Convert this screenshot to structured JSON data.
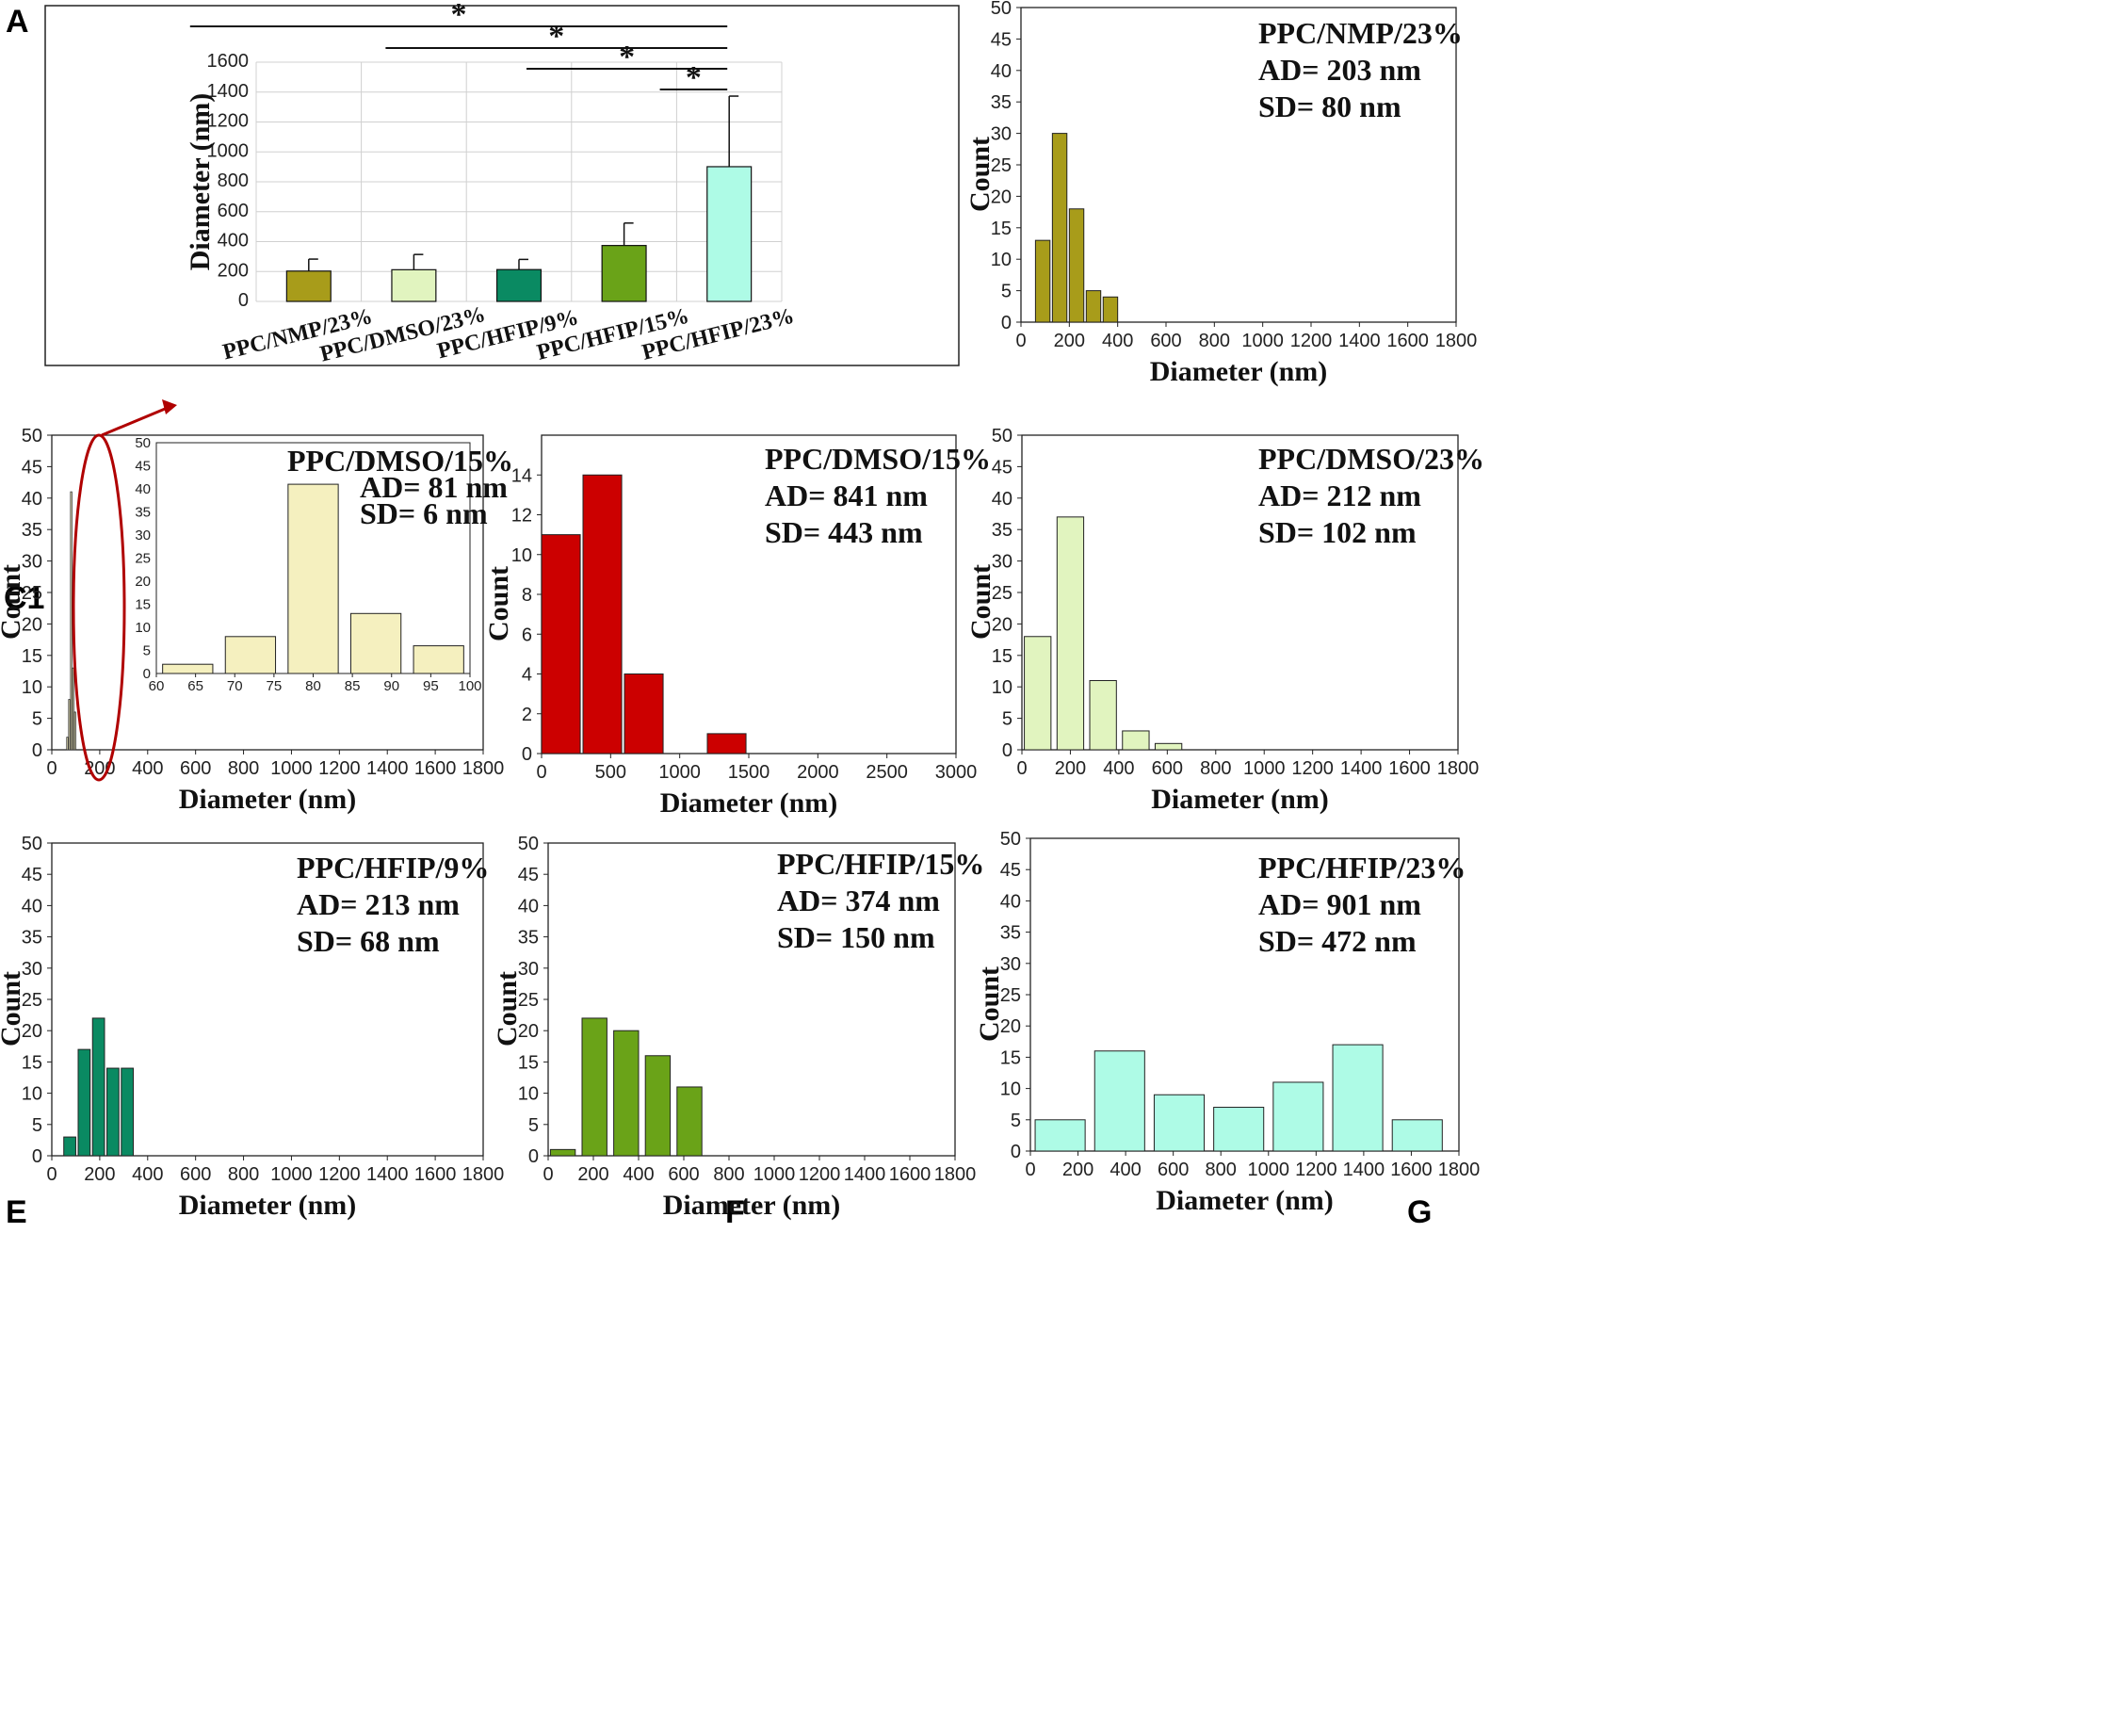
{
  "chart_data": [
    {
      "panel": "A",
      "type": "bar",
      "ylabel": "Diameter (nm)",
      "xlabel": "",
      "ylim": [
        0,
        1600
      ],
      "yticks": [
        0,
        200,
        400,
        600,
        800,
        1000,
        1200,
        1400,
        1600
      ],
      "grid": true,
      "categories": [
        "PPC/NMP/23%",
        "PPC/DMSO/23%",
        "PPC/HFIP/9%",
        "PPC/HFIP/15%",
        "PPC/HFIP/23%"
      ],
      "values": [
        203,
        212,
        213,
        374,
        901
      ],
      "errors": [
        80,
        102,
        68,
        150,
        472
      ],
      "colors": [
        "#a89c1a",
        "#e1f4bf",
        "#0a8a62",
        "#6aa318",
        "#aefbe6"
      ],
      "significance": [
        {
          "from": 0,
          "to": 4,
          "label": "*"
        },
        {
          "from": 1,
          "to": 4,
          "label": "*"
        },
        {
          "from": 2,
          "to": 4,
          "label": "*"
        },
        {
          "from": 3,
          "to": 4,
          "label": "*"
        }
      ]
    },
    {
      "panel": "B",
      "type": "bar",
      "xlabel": "Diameter (nm)",
      "ylabel": "Count",
      "xlim": [
        0,
        1800
      ],
      "ylim": [
        0,
        50
      ],
      "xticks": [
        0,
        200,
        400,
        600,
        800,
        1000,
        1200,
        1400,
        1600,
        1800
      ],
      "yticks": [
        0,
        5,
        10,
        15,
        20,
        25,
        30,
        35,
        40,
        45,
        50
      ],
      "bins": [
        [
          60,
          120,
          13
        ],
        [
          130,
          190,
          30
        ],
        [
          200,
          260,
          18
        ],
        [
          270,
          330,
          5
        ],
        [
          340,
          400,
          4
        ]
      ],
      "color": "#a89c1a",
      "annotation": [
        "PPC/NMP/23%",
        "AD= 203 nm",
        "SD= 80 nm"
      ]
    },
    {
      "panel": "C1",
      "type": "bar",
      "xlabel": "Diameter (nm)",
      "ylabel": "Count",
      "xlim": [
        0,
        1800
      ],
      "ylim": [
        0,
        50
      ],
      "xticks": [
        0,
        200,
        400,
        600,
        800,
        1000,
        1200,
        1400,
        1600,
        1800
      ],
      "yticks": [
        0,
        5,
        10,
        15,
        20,
        25,
        30,
        35,
        40,
        45,
        50
      ],
      "bins": [
        [
          62,
          66,
          2
        ],
        [
          70,
          74,
          8
        ],
        [
          78,
          82,
          41
        ],
        [
          86,
          90,
          13
        ],
        [
          94,
          98,
          6
        ]
      ],
      "color": "#f5f0bf",
      "annotation": [
        "PPC/DMSO/15%",
        "AD= 81 nm",
        "SD= 6 nm"
      ],
      "inset": {
        "xlim": [
          60,
          100
        ],
        "ylim": [
          0,
          50
        ],
        "xticks": [
          60,
          65,
          70,
          75,
          80,
          85,
          90,
          95,
          100
        ],
        "yticks": [
          0,
          5,
          10,
          15,
          20,
          25,
          30,
          35,
          40,
          45,
          50
        ],
        "bins": [
          [
            61,
            69,
            2
          ],
          [
            71,
            79,
            8
          ],
          [
            81,
            89,
            41
          ],
          [
            91,
            99,
            13
          ],
          [
            101,
            109,
            6
          ]
        ]
      }
    },
    {
      "panel": "C2",
      "type": "bar",
      "xlabel": "Diameter (nm)",
      "ylabel": "Count",
      "xlim": [
        0,
        3000
      ],
      "ylim": [
        0,
        16
      ],
      "xticks": [
        0,
        500,
        1000,
        1500,
        2000,
        2500,
        3000
      ],
      "yticks": [
        0,
        2,
        4,
        6,
        8,
        10,
        12,
        14
      ],
      "bins": [
        [
          0,
          280,
          11
        ],
        [
          300,
          580,
          14
        ],
        [
          600,
          880,
          4
        ],
        [
          1200,
          1480,
          1
        ]
      ],
      "color": "#cc0000",
      "annotation": [
        "PPC/DMSO/15%",
        "AD= 841 nm",
        "SD= 443 nm"
      ]
    },
    {
      "panel": "D",
      "type": "bar",
      "xlabel": "Diameter (nm)",
      "ylabel": "Count",
      "xlim": [
        0,
        1800
      ],
      "ylim": [
        0,
        50
      ],
      "xticks": [
        0,
        200,
        400,
        600,
        800,
        1000,
        1200,
        1400,
        1600,
        1800
      ],
      "yticks": [
        0,
        5,
        10,
        15,
        20,
        25,
        30,
        35,
        40,
        45,
        50
      ],
      "bins": [
        [
          10,
          120,
          18
        ],
        [
          145,
          255,
          37
        ],
        [
          280,
          390,
          11
        ],
        [
          415,
          525,
          3
        ],
        [
          550,
          660,
          1
        ]
      ],
      "color": "#e1f4bf",
      "annotation": [
        "PPC/DMSO/23%",
        "AD= 212 nm",
        "SD= 102 nm"
      ]
    },
    {
      "panel": "E",
      "type": "bar",
      "xlabel": "Diameter (nm)",
      "ylabel": "Count",
      "xlim": [
        0,
        1800
      ],
      "ylim": [
        0,
        50
      ],
      "xticks": [
        0,
        200,
        400,
        600,
        800,
        1000,
        1200,
        1400,
        1600,
        1800
      ],
      "yticks": [
        0,
        5,
        10,
        15,
        20,
        25,
        30,
        35,
        40,
        45,
        50
      ],
      "bins": [
        [
          50,
          100,
          3
        ],
        [
          110,
          160,
          17
        ],
        [
          170,
          220,
          22
        ],
        [
          230,
          280,
          14
        ],
        [
          290,
          340,
          14
        ]
      ],
      "color": "#0a8a62",
      "annotation": [
        "PPC/HFIP/9%",
        "AD= 213 nm",
        "SD= 68 nm"
      ]
    },
    {
      "panel": "F",
      "type": "bar",
      "xlabel": "Diameter (nm)",
      "ylabel": "Count",
      "xlim": [
        0,
        1800
      ],
      "ylim": [
        0,
        50
      ],
      "xticks": [
        0,
        200,
        400,
        600,
        800,
        1000,
        1200,
        1400,
        1600,
        1800
      ],
      "yticks": [
        0,
        5,
        10,
        15,
        20,
        25,
        30,
        35,
        40,
        45,
        50
      ],
      "bins": [
        [
          10,
          120,
          1
        ],
        [
          150,
          260,
          22
        ],
        [
          290,
          400,
          20
        ],
        [
          430,
          540,
          16
        ],
        [
          570,
          680,
          11
        ]
      ],
      "color": "#6aa318",
      "annotation": [
        "PPC/HFIP/15%",
        "AD= 374 nm",
        "SD= 150 nm"
      ]
    },
    {
      "panel": "G",
      "type": "bar",
      "xlabel": "Diameter (nm)",
      "ylabel": "Count",
      "xlim": [
        0,
        1800
      ],
      "ylim": [
        0,
        50
      ],
      "xticks": [
        0,
        200,
        400,
        600,
        800,
        1000,
        1200,
        1400,
        1600,
        1800
      ],
      "yticks": [
        0,
        5,
        10,
        15,
        20,
        25,
        30,
        35,
        40,
        45,
        50
      ],
      "bins": [
        [
          20,
          230,
          5
        ],
        [
          270,
          480,
          16
        ],
        [
          520,
          730,
          9
        ],
        [
          770,
          980,
          7
        ],
        [
          1020,
          1230,
          11
        ],
        [
          1270,
          1480,
          17
        ],
        [
          1520,
          1730,
          5
        ]
      ],
      "color": "#aefbe6",
      "annotation": [
        "PPC/HFIP/23%",
        "AD= 901 nm",
        "SD= 472 nm"
      ]
    }
  ]
}
